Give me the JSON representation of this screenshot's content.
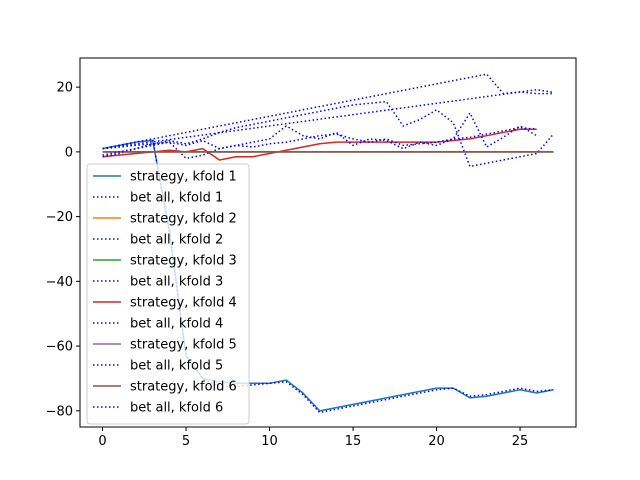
{
  "chart_data": {
    "type": "line",
    "title": "",
    "xlabel": "",
    "ylabel": "",
    "xlim": [
      -1.35,
      28.35
    ],
    "ylim": [
      -85,
      29
    ],
    "xticks": [
      0,
      5,
      10,
      15,
      20,
      25
    ],
    "yticks": [
      -80,
      -60,
      -40,
      -20,
      0,
      20
    ],
    "grid": false,
    "legend_position": "lower-left",
    "series": [
      {
        "name": "strategy, kfold 1",
        "color": "#1f77b4",
        "style": "solid",
        "x": [
          0,
          1,
          2,
          3,
          4,
          5,
          6,
          7,
          8,
          9,
          10,
          11,
          12,
          13,
          14,
          15,
          16,
          17,
          18,
          19,
          20,
          21,
          22,
          23,
          24,
          25,
          26,
          27
        ],
        "y": [
          1,
          2,
          3,
          3.5,
          -24,
          -63,
          -70,
          -71,
          -71.5,
          -71.5,
          -71.5,
          -70.5,
          -74.5,
          -80,
          -79,
          -78,
          -77,
          -76,
          -75,
          -74,
          -73,
          -73,
          -76,
          -75.5,
          -74.5,
          -73.5,
          -74.5,
          -73.5
        ]
      },
      {
        "name": "bet all, kfold 1",
        "color": "#0000ff",
        "style": "dotted",
        "x": [
          0,
          1,
          2,
          3,
          4,
          5,
          6,
          7,
          8,
          9,
          10,
          11,
          12,
          13,
          14,
          15,
          16,
          17,
          18,
          19,
          20,
          21,
          22,
          23,
          24,
          25,
          26,
          27
        ],
        "y": [
          1,
          2,
          3,
          4,
          -25,
          -63,
          -70,
          -72.5,
          -72.5,
          -72,
          -71.5,
          -71,
          -75,
          -80.5,
          -79.5,
          -78.5,
          -77.5,
          -76.5,
          -75.5,
          -74.5,
          -73.5,
          -73,
          -75.5,
          -75,
          -74,
          -73,
          -74,
          -73.5
        ]
      },
      {
        "name": "strategy, kfold 2",
        "color": "#ff7f0e",
        "style": "solid",
        "x": [
          0,
          1,
          2,
          3,
          4,
          5,
          6,
          7,
          8,
          9,
          10,
          11,
          12,
          13,
          14,
          15,
          16,
          17,
          18,
          19,
          20,
          21,
          22,
          23,
          24,
          25,
          26,
          27
        ],
        "y": [
          0,
          0,
          0,
          0,
          0,
          0,
          0,
          0,
          0,
          0,
          0,
          0,
          0,
          0,
          0,
          0,
          0,
          0,
          0,
          0,
          0,
          0,
          0,
          0,
          0,
          0,
          0,
          0
        ]
      },
      {
        "name": "bet all, kfold 2",
        "color": "#0000ff",
        "style": "dotted",
        "x": [
          0,
          1,
          2,
          3,
          4,
          5,
          6,
          7,
          8,
          9,
          10,
          11,
          12,
          13,
          14,
          15,
          16,
          17,
          18,
          19,
          20,
          21,
          22,
          23,
          24,
          25,
          26,
          27
        ],
        "y": [
          1,
          2,
          3,
          4,
          5,
          6,
          7,
          8,
          9,
          10,
          11,
          12,
          13,
          14,
          15,
          16,
          17,
          18,
          19,
          20,
          21,
          22,
          23,
          24,
          18,
          18.5,
          18,
          18
        ]
      },
      {
        "name": "strategy, kfold 3",
        "color": "#2ca02c",
        "style": "solid",
        "x": [
          0,
          1,
          2,
          3,
          4,
          5,
          6,
          7,
          8,
          9,
          10,
          11,
          12,
          13,
          14,
          15,
          16,
          17,
          18,
          19,
          20,
          21,
          22,
          23,
          24,
          25,
          26,
          27
        ],
        "y": [
          0,
          0,
          0,
          0,
          0,
          0,
          0,
          0,
          0,
          0,
          0,
          0,
          0,
          0,
          0,
          0,
          0,
          0,
          0,
          0,
          0,
          0,
          0,
          0,
          0,
          0,
          0,
          0
        ]
      },
      {
        "name": "bet all, kfold 3",
        "color": "#0000ff",
        "style": "dotted",
        "x": [
          0,
          1,
          2,
          3,
          4,
          5,
          6,
          7,
          8,
          9,
          10,
          11,
          12,
          13,
          14,
          15,
          16,
          17,
          18,
          19,
          20,
          21,
          22,
          23,
          24,
          25,
          26,
          27
        ],
        "y": [
          1,
          1.7,
          2.4,
          3.1,
          3.8,
          4.5,
          5.2,
          5.9,
          6.6,
          7.3,
          8,
          8.7,
          9.4,
          10.1,
          10.8,
          11.5,
          12.2,
          12.9,
          13.6,
          14.3,
          15,
          15.7,
          16.4,
          17.1,
          17.8,
          18.5,
          19.2,
          18.4
        ]
      },
      {
        "name": "strategy, kfold 4",
        "color": "#d62728",
        "style": "solid",
        "x": [
          0,
          1,
          2,
          3,
          4,
          5,
          6,
          7,
          8,
          9,
          10,
          11,
          12,
          13,
          14,
          15,
          16,
          17,
          18,
          19,
          20,
          21,
          22,
          23,
          24,
          25,
          26
        ],
        "y": [
          -1.5,
          -1,
          -0.5,
          0,
          0.5,
          0,
          1,
          -2.5,
          -1.5,
          -1.5,
          -0.5,
          0.5,
          1.5,
          2.5,
          3,
          3,
          3,
          3,
          3,
          3,
          3,
          3.5,
          4,
          5,
          6,
          7,
          7
        ]
      },
      {
        "name": "bet all, kfold 4",
        "color": "#0000ff",
        "style": "dotted",
        "x": [
          0,
          1,
          2,
          3,
          4,
          5,
          6,
          7,
          8,
          9,
          10,
          11,
          12,
          13,
          14,
          15,
          16,
          17,
          18,
          19,
          20,
          21,
          22,
          23,
          24,
          25,
          26,
          27
        ],
        "y": [
          -1.5,
          -0.5,
          1,
          2.5,
          3.5,
          2.5,
          4,
          6,
          7.5,
          8.5,
          9.5,
          10.5,
          11.5,
          12.5,
          13.5,
          14.5,
          15,
          15.5,
          8,
          10,
          13,
          9,
          -4.5,
          -3.5,
          -2.5,
          -1.5,
          -0.5,
          5.5
        ]
      },
      {
        "name": "strategy, kfold 5",
        "color": "#9467bd",
        "style": "solid",
        "x": [
          0,
          1,
          2,
          3,
          4,
          5,
          6,
          7,
          8,
          9,
          10,
          11,
          12,
          13,
          14,
          15,
          16,
          17,
          18,
          19,
          20,
          21,
          22,
          23,
          24,
          25,
          26,
          27
        ],
        "y": [
          0,
          0,
          0,
          0,
          0,
          0,
          0,
          0,
          0,
          0,
          0,
          0,
          0,
          0,
          0,
          0,
          0,
          0,
          0,
          0,
          0,
          0,
          0,
          0,
          0,
          0,
          0,
          0
        ]
      },
      {
        "name": "bet all, kfold 5",
        "color": "#0000ff",
        "style": "dotted",
        "x": [
          0,
          1,
          2,
          3,
          4,
          5,
          6,
          7,
          8,
          9,
          10,
          11,
          12,
          13,
          14,
          15,
          16,
          17,
          18,
          19,
          20,
          21,
          22,
          23,
          24,
          25,
          26
        ],
        "y": [
          1,
          1.5,
          2,
          2.5,
          3,
          -2,
          -1,
          1,
          2,
          3,
          4,
          8,
          5,
          4,
          6,
          2,
          4,
          3.5,
          1,
          3,
          2,
          4,
          12,
          1.5,
          4.5,
          8,
          5
        ]
      },
      {
        "name": "strategy, kfold 6",
        "color": "#8c564b",
        "style": "solid",
        "x": [
          0,
          1,
          2,
          3,
          4,
          5,
          6,
          7,
          8,
          9,
          10,
          11,
          12,
          13,
          14,
          15,
          16,
          17,
          18,
          19,
          20,
          21,
          22,
          23,
          24,
          25,
          26,
          27
        ],
        "y": [
          0,
          0,
          0,
          0,
          0,
          0,
          0,
          0,
          0,
          0,
          0,
          0,
          0,
          0,
          0,
          0,
          0,
          0,
          0,
          0,
          0,
          0,
          0,
          0,
          0,
          0,
          0,
          0
        ]
      },
      {
        "name": "bet all, kfold 6",
        "color": "#0000ff",
        "style": "dotted",
        "x": [
          0,
          1,
          2,
          3,
          4,
          5,
          6,
          7,
          8,
          9,
          10,
          11,
          12,
          13,
          14,
          15,
          16,
          17,
          18,
          19,
          20,
          21,
          22,
          23,
          24,
          25,
          26
        ],
        "y": [
          -1,
          0,
          1,
          2,
          3,
          2,
          3.5,
          1,
          2,
          1.5,
          2.5,
          3,
          4,
          5,
          5.5,
          4,
          3,
          4,
          2,
          2.5,
          3,
          4,
          4.5,
          5.5,
          6.5,
          7.5,
          7
        ]
      }
    ]
  }
}
